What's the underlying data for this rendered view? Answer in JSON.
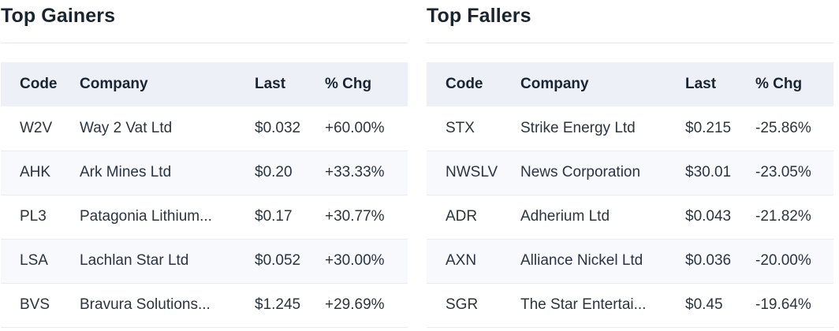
{
  "gainers": {
    "title": "Top Gainers",
    "headers": {
      "code": "Code",
      "company": "Company",
      "last": "Last",
      "chg": "% Chg"
    },
    "rows": [
      {
        "code": "W2V",
        "company": "Way 2 Vat Ltd",
        "last": "$0.032",
        "chg": "+60.00%"
      },
      {
        "code": "AHK",
        "company": "Ark Mines Ltd",
        "last": "$0.20",
        "chg": "+33.33%"
      },
      {
        "code": "PL3",
        "company": "Patagonia Lithium...",
        "last": "$0.17",
        "chg": "+30.77%"
      },
      {
        "code": "LSA",
        "company": "Lachlan Star Ltd",
        "last": "$0.052",
        "chg": "+30.00%"
      },
      {
        "code": "BVS",
        "company": "Bravura Solutions...",
        "last": "$1.245",
        "chg": "+29.69%"
      }
    ]
  },
  "fallers": {
    "title": "Top Fallers",
    "headers": {
      "code": "Code",
      "company": "Company",
      "last": "Last",
      "chg": "% Chg"
    },
    "rows": [
      {
        "code": "STX",
        "company": "Strike Energy Ltd",
        "last": "$0.215",
        "chg": "-25.86%"
      },
      {
        "code": "NWSLV",
        "company": "News Corporation",
        "last": "$30.01",
        "chg": "-23.05%"
      },
      {
        "code": "ADR",
        "company": "Adherium Ltd",
        "last": "$0.043",
        "chg": "-21.82%"
      },
      {
        "code": "AXN",
        "company": "Alliance Nickel Ltd",
        "last": "$0.036",
        "chg": "-20.00%"
      },
      {
        "code": "SGR",
        "company": "The Star Entertai...",
        "last": "$0.45",
        "chg": "-19.64%"
      }
    ]
  }
}
